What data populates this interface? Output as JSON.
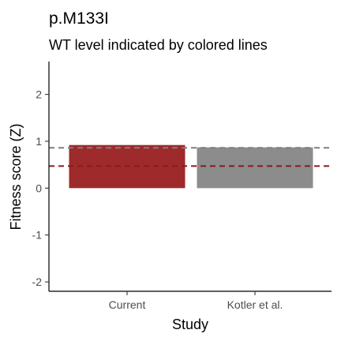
{
  "chart_data": {
    "type": "bar",
    "title": "p.M133I",
    "subtitle": "WT level indicated by colored lines",
    "xlabel": "Study",
    "ylabel": "Fitness score (Z)",
    "categories": [
      "Current",
      "Kotler et al."
    ],
    "values": [
      0.92,
      0.87
    ],
    "bar_colors": [
      "#9e2a2b",
      "#8c8c8c"
    ],
    "ylim": [
      -2.2,
      2.7
    ],
    "yticks": [
      -2,
      -1,
      0,
      1,
      2
    ],
    "ytick_labels": [
      "-2",
      "-1",
      "0",
      "1",
      "2"
    ],
    "reference_lines": [
      {
        "value": 0.86,
        "color": "#7f7f7f",
        "style": "dashed"
      },
      {
        "value": 0.47,
        "color": "#8b1a1a",
        "style": "dashed"
      }
    ],
    "grid": false,
    "legend": "none"
  }
}
